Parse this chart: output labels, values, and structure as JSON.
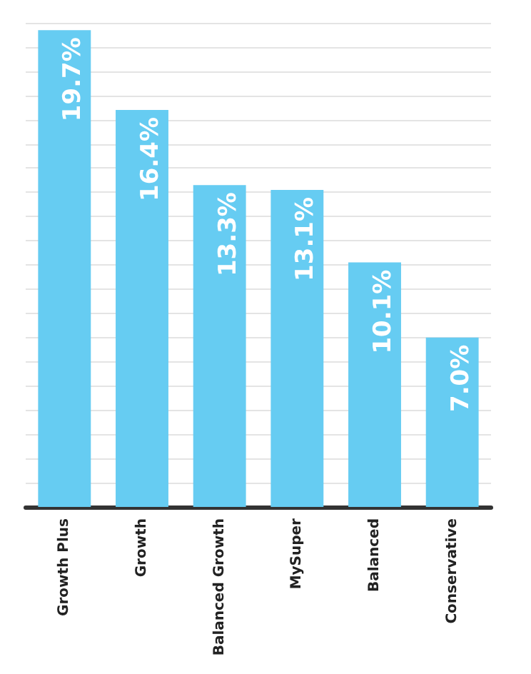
{
  "chart_data": {
    "type": "bar",
    "categories": [
      "Growth Plus",
      "Growth",
      "Balanced Growth",
      "MySuper",
      "Balanced",
      "Conservative"
    ],
    "values": [
      19.7,
      16.4,
      13.3,
      13.1,
      10.1,
      7.0
    ],
    "value_labels": [
      "19.7%",
      "16.4%",
      "13.3%",
      "13.1%",
      "10.1%",
      "7.0%"
    ],
    "color": "#66ccf2",
    "ylim": [
      0,
      20
    ],
    "yticks": [
      {
        "value": 0,
        "label": null
      },
      {
        "value": 1,
        "label": null
      },
      {
        "value": 2,
        "label": null
      },
      {
        "value": 3,
        "label": null
      },
      {
        "value": 4,
        "label": null
      },
      {
        "value": 5,
        "label": null
      },
      {
        "value": 6,
        "label": null
      },
      {
        "value": 7,
        "label": null
      },
      {
        "value": 8,
        "label": null
      },
      {
        "value": 9,
        "label": null
      },
      {
        "value": 10,
        "label": null
      },
      {
        "value": 11,
        "label": null
      },
      {
        "value": 12,
        "label": null
      },
      {
        "value": 13,
        "label": null
      },
      {
        "value": 14,
        "label": null
      },
      {
        "value": 15,
        "label": null
      },
      {
        "value": 16,
        "label": null
      },
      {
        "value": 17,
        "label": null
      },
      {
        "value": 18,
        "label": null
      },
      {
        "value": 19,
        "label": null
      },
      {
        "value": 20,
        "label": null
      }
    ],
    "grid": "y",
    "tick_labels": "x"
  }
}
